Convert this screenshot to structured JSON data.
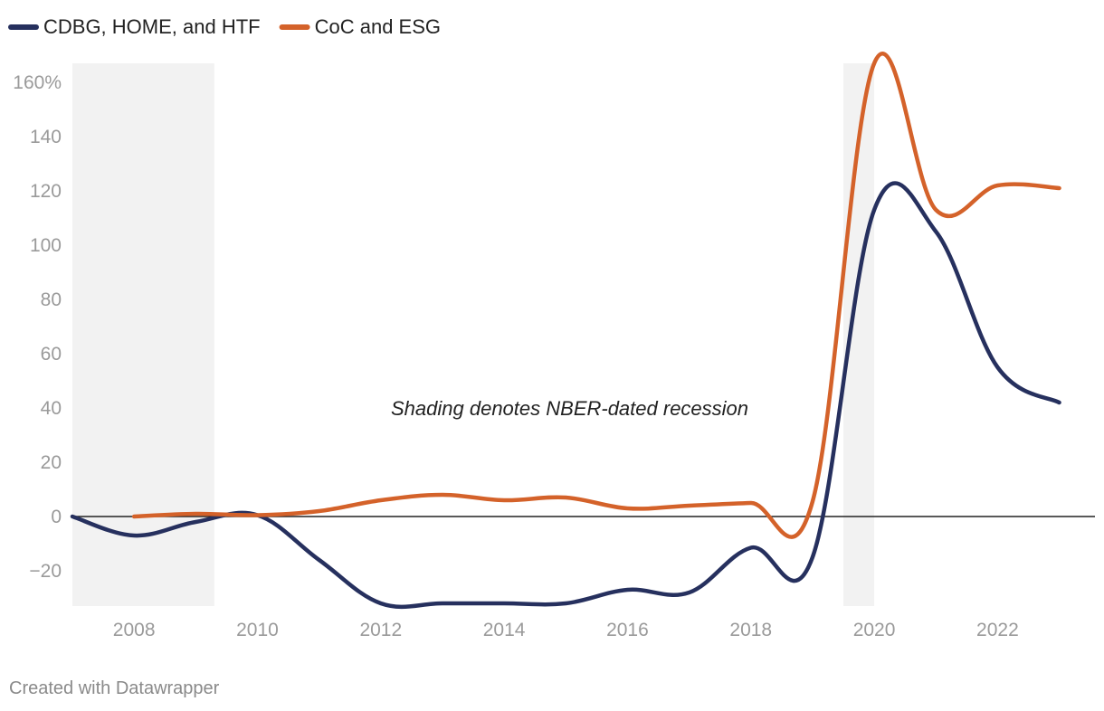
{
  "chart_data": {
    "type": "line",
    "ylabel_unit": "%",
    "ylim": [
      -33,
      167
    ],
    "xlim": [
      2007,
      2023
    ],
    "yticks": [
      -20,
      0,
      20,
      40,
      60,
      80,
      100,
      120,
      140,
      160
    ],
    "ytick_labels": [
      "−20",
      "0",
      "20",
      "40",
      "60",
      "80",
      "100",
      "120",
      "140",
      "160%"
    ],
    "xticks": [
      2008,
      2010,
      2012,
      2014,
      2016,
      2018,
      2020,
      2022
    ],
    "xtick_labels": [
      "2008",
      "2010",
      "2012",
      "2014",
      "2016",
      "2018",
      "2020",
      "2022"
    ],
    "grid": false,
    "legend_position": "top-left",
    "recessions": [
      {
        "start": 2007,
        "end": 2009.3
      },
      {
        "start": 2019.5,
        "end": 2020
      }
    ],
    "annotation": "Shading denotes NBER-dated recession",
    "series": [
      {
        "name": "CDBG, HOME, and HTF",
        "color": "#26305e",
        "x": [
          2007,
          2008,
          2009,
          2010,
          2011,
          2012,
          2013,
          2014,
          2015,
          2016,
          2017,
          2018,
          2019,
          2020,
          2021,
          2022,
          2023
        ],
        "values": [
          0,
          -7,
          -2,
          0.5,
          -16,
          -32,
          -32,
          -32,
          -32,
          -27,
          -28,
          -11.5,
          -15,
          113,
          105,
          55,
          42
        ]
      },
      {
        "name": "CoC and ESG",
        "color": "#d4622a",
        "x": [
          2008,
          2009,
          2010,
          2011,
          2012,
          2013,
          2014,
          2015,
          2016,
          2017,
          2018,
          2019,
          2020,
          2021,
          2022,
          2023
        ],
        "values": [
          0,
          1,
          0.5,
          2,
          6,
          8,
          6,
          7,
          3,
          4,
          5,
          5.5,
          167,
          113,
          122,
          121
        ]
      }
    ]
  },
  "footer": {
    "credit": "Created with Datawrapper"
  }
}
